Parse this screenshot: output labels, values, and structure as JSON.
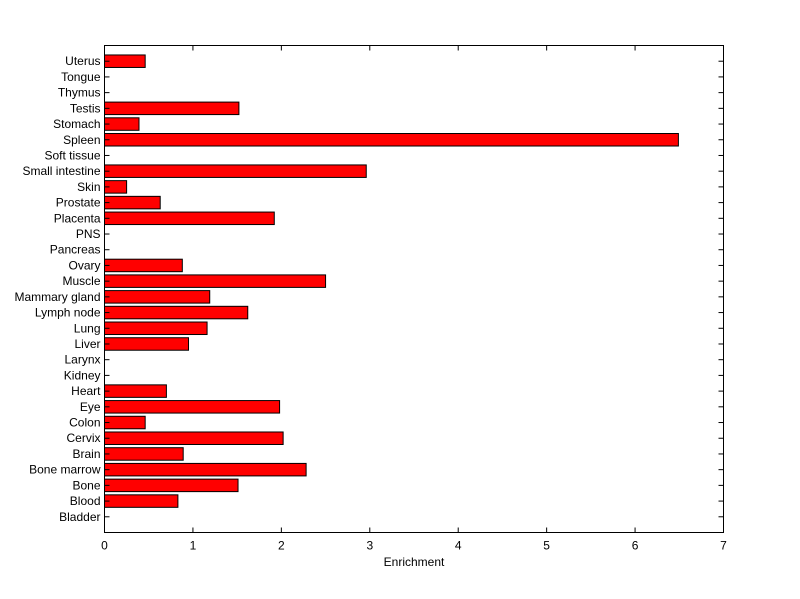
{
  "chart_data": {
    "type": "bar",
    "orientation": "horizontal",
    "title": "",
    "xlabel": "Enrichment",
    "ylabel": "",
    "xlim": [
      0,
      7
    ],
    "xticks": [
      "0",
      "1",
      "2",
      "3",
      "4",
      "5",
      "6",
      "7"
    ],
    "grid": false,
    "legend": "none",
    "bar_color": "#ff0000",
    "bar_edge_color": "#000000",
    "categories": [
      "Bladder",
      "Blood",
      "Bone",
      "Bone marrow",
      "Brain",
      "Cervix",
      "Colon",
      "Eye",
      "Heart",
      "Kidney",
      "Larynx",
      "Liver",
      "Lung",
      "Lymph node",
      "Mammary gland",
      "Muscle",
      "Ovary",
      "Pancreas",
      "PNS",
      "Placenta",
      "Prostate",
      "Skin",
      "Small intestine",
      "Soft tissue",
      "Spleen",
      "Stomach",
      "Testis",
      "Thymus",
      "Tongue",
      "Uterus"
    ],
    "values": [
      0,
      0.83,
      1.51,
      2.28,
      0.89,
      2.02,
      0.46,
      1.98,
      0.7,
      0,
      0,
      0.95,
      1.16,
      1.62,
      1.19,
      2.5,
      0.88,
      0,
      0,
      1.92,
      0.63,
      0.25,
      2.96,
      0,
      6.49,
      0.39,
      1.52,
      0,
      0,
      0.46
    ]
  }
}
